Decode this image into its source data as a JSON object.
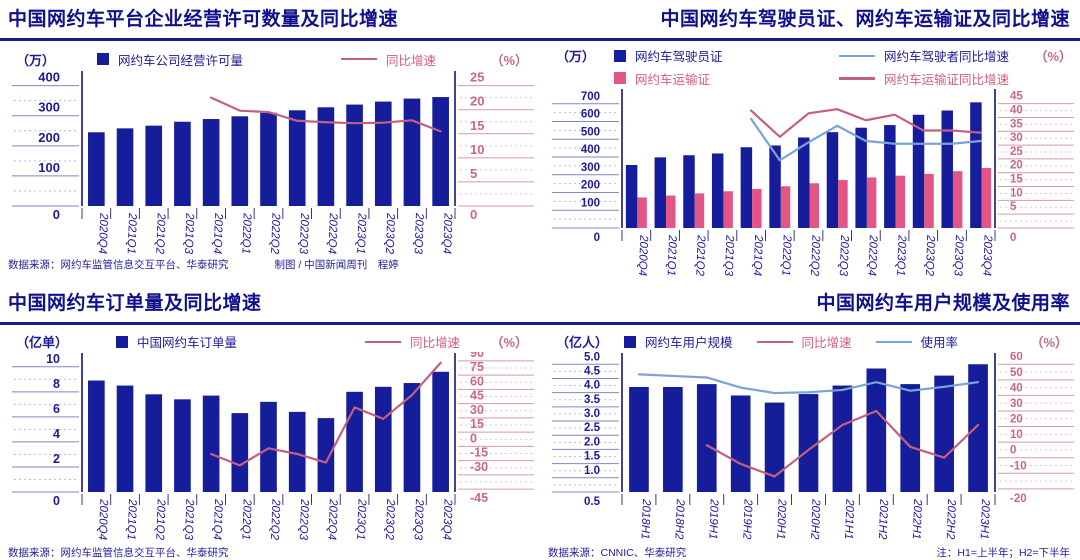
{
  "colors": {
    "navy_bar": "#161d9b",
    "pink_bar": "#e25584",
    "rose_line": "#c4607f",
    "blue_line": "#7aa3d6",
    "navy_text": "#1b1b96",
    "right_text": "#c76a7e",
    "title": "#10108c",
    "rule": "#1a1a8c",
    "axis_line": "#23237a",
    "stub_solid": "#8287bd",
    "stub_dot": "#b8bcd8",
    "stub_solid_r": "#d49aa8",
    "stub_dot_r": "#e4c6cd",
    "footer_text": "#22229a"
  },
  "chart_data": [
    {
      "type": "bar+line",
      "title": "中国网约车平台企业经营许可数量及同比增速",
      "unit_left": "（万）",
      "unit_right": "（%）",
      "categories": [
        "2020Q4",
        "2021Q1",
        "2021Q2",
        "2021Q3",
        "2021Q4",
        "2022Q1",
        "2022Q2",
        "2022Q3",
        "2022Q4",
        "2023Q1",
        "2023Q2",
        "2023Q3",
        "2023Q4"
      ],
      "left_axis": {
        "min": 0,
        "max": 432,
        "tick_values": [
          400,
          300,
          200,
          100,
          0
        ],
        "tick_labels": [
          "400",
          "300",
          "200",
          "100",
          "0"
        ]
      },
      "right_axis": {
        "min": 0,
        "max": 27,
        "tick_values": [
          25,
          20,
          15,
          10,
          5,
          0
        ],
        "tick_labels": [
          "25",
          "20",
          "15",
          "10",
          "5",
          "0"
        ]
      },
      "bar_series": [
        {
          "name": "网约车公司经营许可量",
          "color": "#161d9b",
          "values": [
            245,
            258,
            267,
            280,
            289,
            298,
            310,
            318,
            328,
            337,
            347,
            357,
            362
          ]
        }
      ],
      "line_series": [
        {
          "name": "同比增速",
          "color": "#c4607f",
          "values": [
            null,
            null,
            null,
            null,
            22.5,
            19.8,
            19.5,
            17.7,
            17.4,
            17.2,
            17.3,
            17.8,
            15.5
          ]
        }
      ],
      "legend_rows": [
        [
          {
            "label": "网约车公司经营许可量",
            "swatch": "bar",
            "swatch_color": "#161d9b",
            "label_color": "#1b1b96"
          },
          {
            "label": "同比增速",
            "swatch": "line",
            "swatch_color": "#c4607f",
            "label_color": "#d0607e"
          }
        ]
      ],
      "footer": {
        "source": "数据来源：网约车监管信息交互平台、华泰研究",
        "credit": "制图 / 中国新闻周刊　程婷"
      }
    },
    {
      "type": "bar+line",
      "title": "中国网约车驾驶员证、网约车运输证及同比增速",
      "unit_left": "（万）",
      "unit_right": "（%）",
      "categories": [
        "2020Q4",
        "2021Q1",
        "2021Q2",
        "2021Q3",
        "2021Q4",
        "2022Q1",
        "2022Q2",
        "2022Q3",
        "2022Q4",
        "2023Q1",
        "2023Q2",
        "2023Q3",
        "2023Q4"
      ],
      "left_axis": {
        "min": 0,
        "max": 755,
        "tick_values": [
          700,
          600,
          500,
          400,
          300,
          200,
          100,
          0
        ],
        "tick_labels": [
          "700",
          "600",
          "500",
          "400",
          "300",
          "200",
          "100",
          "0"
        ]
      },
      "right_axis": {
        "min": 0,
        "max": 48.5,
        "tick_values": [
          45,
          40,
          35,
          30,
          25,
          20,
          15,
          10,
          5,
          0
        ],
        "tick_labels": [
          "45",
          "40",
          "35",
          "30",
          "25",
          "20",
          "15",
          "10",
          "5",
          "0"
        ]
      },
      "bar_series": [
        {
          "name": "网约车驾驶员证",
          "color": "#161d9b",
          "values": [
            355,
            398,
            410,
            420,
            455,
            465,
            510,
            540,
            565,
            580,
            638,
            662,
            708
          ]
        },
        {
          "name": "网约车运输证",
          "color": "#e25584",
          "values": [
            172,
            183,
            195,
            207,
            220,
            235,
            252,
            270,
            285,
            295,
            305,
            320,
            338
          ]
        }
      ],
      "line_series": [
        {
          "name": "网约车驾驶者同比增速",
          "color": "#7aa3d6",
          "values": [
            null,
            null,
            null,
            null,
            39.5,
            24.5,
            31,
            37,
            31.5,
            30.5,
            30.5,
            30.5,
            31.5
          ]
        },
        {
          "name": "网约车运输证同比增速",
          "color": "#c4607f",
          "values": [
            null,
            null,
            null,
            null,
            42.5,
            33,
            41.5,
            43,
            39,
            41,
            35.3,
            35.3,
            34.5
          ]
        }
      ],
      "legend_rows": [
        [
          {
            "label": "网约车驾驶员证",
            "swatch": "bar",
            "swatch_color": "#161d9b",
            "label_color": "#1b1b96"
          },
          {
            "label": "网约车驾驶者同比增速",
            "swatch": "line",
            "swatch_color": "#7aa3d6",
            "label_color": "#1b1b96"
          }
        ],
        [
          {
            "label": "网约车运输证",
            "swatch": "bar",
            "swatch_color": "#e25584",
            "label_color": "#d0607e"
          },
          {
            "label": "网约车运输证同比增速",
            "swatch": "line",
            "swatch_color": "#c4607f",
            "label_color": "#d0607e"
          }
        ]
      ],
      "footer": null
    },
    {
      "type": "bar+line",
      "title": "中国网约车订单量及同比增速",
      "unit_left": "（亿单）",
      "unit_right": "（%）",
      "categories": [
        "2020Q4",
        "2021Q1",
        "2021Q2",
        "2021Q3",
        "2021Q4",
        "2022Q1",
        "2022Q2",
        "2022Q3",
        "2022Q4",
        "2023Q1",
        "2023Q2",
        "2023Q3",
        "2023Q4"
      ],
      "left_axis": {
        "min": 0,
        "max": 10.7,
        "tick_values": [
          10,
          8,
          6,
          4,
          2,
          0
        ],
        "tick_labels": [
          "10",
          "8",
          "6",
          "4",
          "2",
          "0"
        ]
      },
      "right_axis": {
        "min": -48,
        "max": 93,
        "tick_values": [
          90,
          75,
          60,
          45,
          30,
          15,
          0,
          -15,
          -30,
          -45
        ],
        "tick_labels": [
          "90",
          "75",
          "60",
          "45",
          "30",
          "15",
          "0",
          "-15",
          "-30",
          "-45"
        ]
      },
      "bar_series": [
        {
          "name": "中国网约车订单量",
          "color": "#161d9b",
          "values": [
            8.9,
            8.5,
            7.8,
            7.4,
            7.7,
            6.3,
            7.2,
            6.4,
            5.9,
            8.0,
            8.4,
            8.7,
            9.6
          ]
        }
      ],
      "line_series": [
        {
          "name": "同比增速",
          "color": "#c4607f",
          "values": [
            null,
            null,
            null,
            null,
            -8,
            -20,
            -2,
            -8,
            -17,
            41,
            29,
            54,
            88
          ]
        }
      ],
      "legend_rows": [
        [
          {
            "label": "中国网约车订单量",
            "swatch": "bar",
            "swatch_color": "#161d9b",
            "label_color": "#1b1b96"
          },
          {
            "label": "同比增速",
            "swatch": "line",
            "swatch_color": "#c4607f",
            "label_color": "#d0607e"
          }
        ]
      ],
      "footer": {
        "source": "数据来源：网约车监管信息交互平台、华泰研究",
        "credit": ""
      }
    },
    {
      "type": "bar+line",
      "title": "中国网约车用户规模及使用率",
      "unit_left": "（亿人）",
      "unit_right": "（%）",
      "categories": [
        "2018H1",
        "2018H2",
        "2019H1",
        "2019H2",
        "2020H1",
        "2020H2",
        "2021H1",
        "2021H2",
        "2022H1",
        "2022H2",
        "2023H1"
      ],
      "left_axis": {
        "min": 0.5,
        "max": 5.22,
        "tick_values": [
          5.0,
          4.5,
          4.0,
          3.5,
          3.0,
          2.5,
          2.0,
          1.5,
          1.0,
          0.5
        ],
        "tick_labels": [
          "5.0",
          "4.5",
          "4.0",
          "3.5",
          "3.0",
          "2.5",
          "2.0",
          "1.5",
          "1.0",
          "0.5"
        ]
      },
      "right_axis": {
        "min": -22,
        "max": 64,
        "tick_values": [
          60,
          50,
          40,
          30,
          20,
          10,
          0,
          -10,
          -20
        ],
        "tick_labels": [
          "60",
          "50",
          "40",
          "30",
          "20",
          "10",
          "0",
          "-10",
          "-20"
        ]
      },
      "bar_series": [
        {
          "name": "网约车用户规模",
          "color": "#161d9b",
          "values": [
            4.2,
            4.2,
            4.3,
            3.9,
            3.65,
            3.95,
            4.25,
            4.85,
            4.3,
            4.6,
            5.0
          ]
        }
      ],
      "line_series": [
        {
          "name": "同比增速",
          "color": "#c4607f",
          "values": [
            null,
            null,
            8,
            -4,
            -12,
            5,
            21,
            30,
            7,
            0,
            21
          ]
        },
        {
          "name": "使用率",
          "color": "#7aa3d6",
          "values": [
            53.5,
            52.5,
            51.5,
            45,
            41.5,
            42,
            43.5,
            48.5,
            43,
            45.5,
            48.5
          ]
        }
      ],
      "legend_rows": [
        [
          {
            "label": "网约车用户规模",
            "swatch": "bar",
            "swatch_color": "#161d9b",
            "label_color": "#1b1b96"
          },
          {
            "label": "同比增速",
            "swatch": "line",
            "swatch_color": "#c4607f",
            "label_color": "#d0607e"
          },
          {
            "label": "使用率",
            "swatch": "line",
            "swatch_color": "#7aa3d6",
            "label_color": "#1b1b96"
          }
        ]
      ],
      "footer": {
        "source": "数据来源：CNNIC、华泰研究",
        "note": "注：H1=上半年；H2=下半年"
      }
    }
  ]
}
